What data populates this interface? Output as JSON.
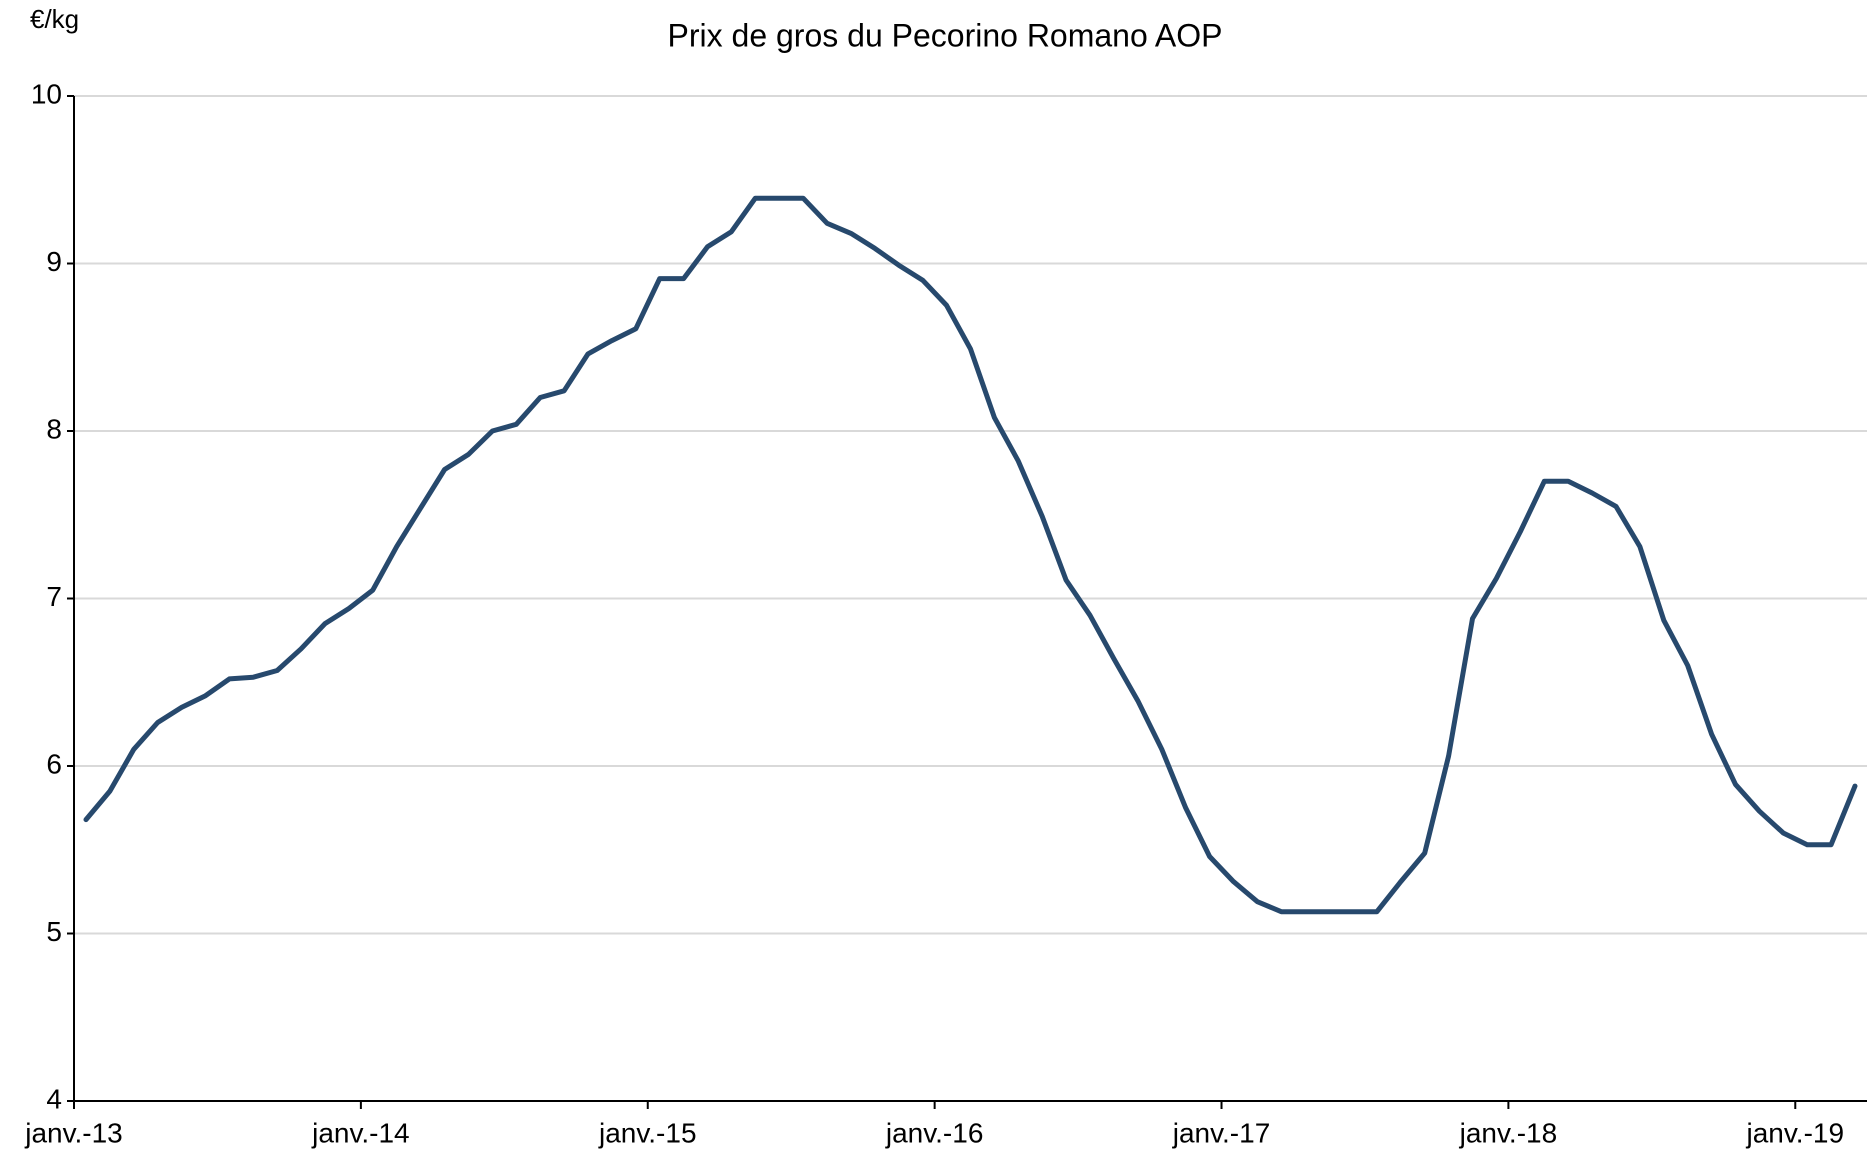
{
  "chart_data": {
    "type": "line",
    "title": "Prix de gros du Pecorino Romano AOP",
    "y_label": "€/kg",
    "categories": [
      "janv.-13",
      null,
      null,
      null,
      null,
      null,
      null,
      null,
      null,
      null,
      null,
      null,
      "janv.-14",
      null,
      null,
      null,
      null,
      null,
      null,
      null,
      null,
      null,
      null,
      null,
      "janv.-15",
      null,
      null,
      null,
      null,
      null,
      null,
      null,
      null,
      null,
      null,
      null,
      "janv.-16",
      null,
      null,
      null,
      null,
      null,
      null,
      null,
      null,
      null,
      null,
      null,
      "janv.-17",
      null,
      null,
      null,
      null,
      null,
      null,
      null,
      null,
      null,
      null,
      null,
      "janv.-18",
      null,
      null,
      null,
      null,
      null,
      null,
      null,
      null,
      null,
      null,
      null,
      "janv.-19",
      null,
      null
    ],
    "series": [
      {
        "name": "Pecorino Romano AOP",
        "color": "#27496d",
        "values": [
          5.68,
          5.85,
          6.1,
          6.26,
          6.35,
          6.42,
          6.52,
          6.53,
          6.57,
          6.7,
          6.85,
          6.94,
          7.05,
          7.31,
          7.54,
          7.77,
          7.86,
          8.0,
          8.04,
          8.2,
          8.24,
          8.46,
          8.54,
          8.61,
          8.91,
          8.91,
          9.1,
          9.19,
          9.39,
          9.39,
          9.39,
          9.24,
          9.18,
          9.09,
          8.99,
          8.9,
          8.75,
          8.49,
          8.08,
          7.82,
          7.49,
          7.11,
          6.9,
          6.64,
          6.39,
          6.1,
          5.75,
          5.46,
          5.31,
          5.19,
          5.13,
          5.13,
          5.13,
          5.13,
          5.13,
          5.31,
          5.48,
          6.06,
          6.88,
          7.12,
          7.4,
          7.7,
          7.7,
          7.63,
          7.55,
          7.31,
          6.87,
          6.6,
          6.19,
          5.89,
          5.73,
          5.6,
          5.53,
          5.53,
          5.88
        ]
      }
    ],
    "ylim": [
      4,
      10
    ],
    "yticks": [
      4,
      5,
      6,
      7,
      8,
      9,
      10
    ],
    "grid": true
  }
}
